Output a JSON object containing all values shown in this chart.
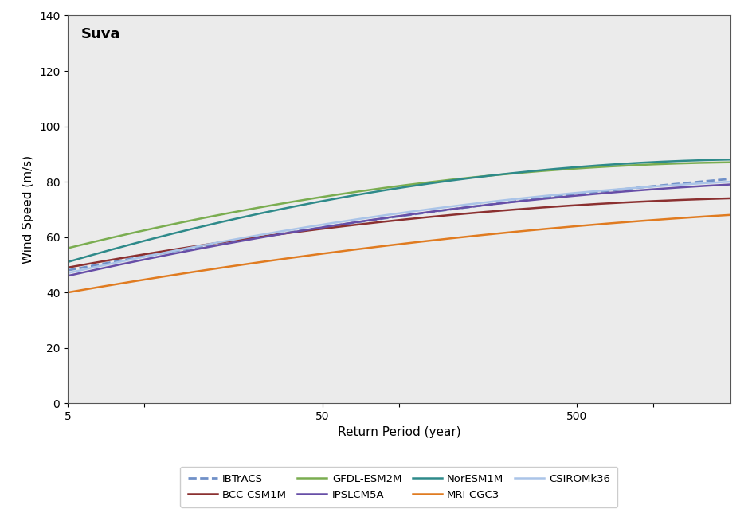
{
  "title": "Suva",
  "xlabel": "Return Period (year)",
  "ylabel": "Wind Speed (m/s)",
  "ylim": [
    0,
    140
  ],
  "yticks": [
    0,
    20,
    40,
    60,
    80,
    100,
    120,
    140
  ],
  "xlog_min": 5,
  "xlog_max": 2000,
  "background_color": "#ebebeb",
  "fig_background": "#ffffff",
  "series": [
    {
      "name": "IBTrACS",
      "color": "#7090c8",
      "style": "--",
      "linewidth": 2.0,
      "y_at_x5": 48.0,
      "y_at_x50": 63.5,
      "y_at_xmax": 81.0
    },
    {
      "name": "BCC-CSM1M",
      "color": "#8b3030",
      "style": "-",
      "linewidth": 1.8,
      "y_at_x5": 49.0,
      "y_at_x50": 63.0,
      "y_at_xmax": 74.0
    },
    {
      "name": "GFDL-ESM2M",
      "color": "#7aad50",
      "style": "-",
      "linewidth": 1.8,
      "y_at_x5": 56.0,
      "y_at_x50": 74.5,
      "y_at_xmax": 87.0
    },
    {
      "name": "IPSLCM5A",
      "color": "#674ea7",
      "style": "-",
      "linewidth": 1.8,
      "y_at_x5": 46.0,
      "y_at_x50": 63.5,
      "y_at_xmax": 79.0
    },
    {
      "name": "NorESM1M",
      "color": "#2e8a8a",
      "style": "-",
      "linewidth": 1.8,
      "y_at_x5": 51.0,
      "y_at_x50": 73.0,
      "y_at_xmax": 88.0
    },
    {
      "name": "MRI-CGC3",
      "color": "#e07b20",
      "style": "-",
      "linewidth": 1.8,
      "y_at_x5": 40.0,
      "y_at_x50": 54.0,
      "y_at_xmax": 68.0
    },
    {
      "name": "CSIROMk36",
      "color": "#aac4e8",
      "style": "-",
      "linewidth": 1.8,
      "y_at_x5": 47.0,
      "y_at_x50": 64.5,
      "y_at_xmax": 80.0
    }
  ],
  "legend_row1": [
    "IBTrACS",
    "BCC-CSM1M",
    "GFDL-ESM2M",
    "IPSLCM5A"
  ],
  "legend_row2": [
    "NorESM1M",
    "MRI-CGC3",
    "CSIROMk36"
  ],
  "legend_fontsize": 9.5
}
